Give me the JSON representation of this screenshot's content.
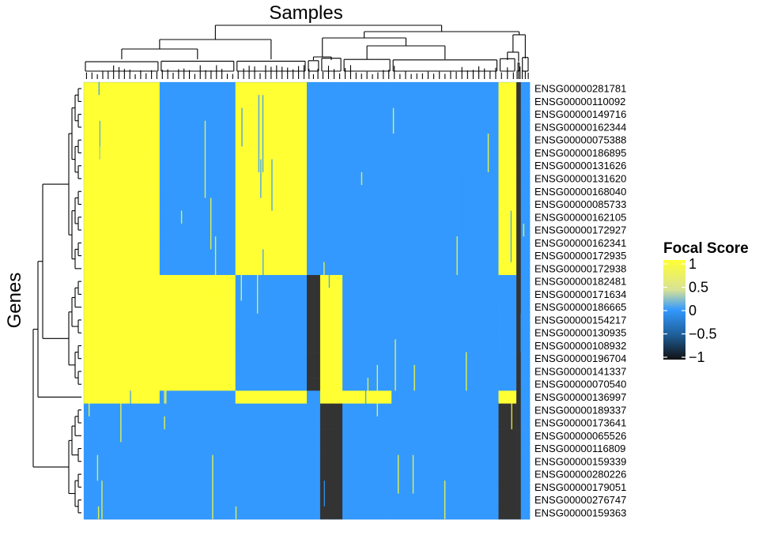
{
  "chart_data": {
    "type": "heatmap",
    "title": "",
    "xlabel": "Samples",
    "ylabel": "Genes",
    "genes": [
      "ENSG00000281781",
      "ENSG00000110092",
      "ENSG00000149716",
      "ENSG00000162344",
      "ENSG00000075388",
      "ENSG00000186895",
      "ENSG00000131626",
      "ENSG00000131620",
      "ENSG00000168040",
      "ENSG00000085733",
      "ENSG00000162105",
      "ENSG00000172927",
      "ENSG00000162341",
      "ENSG00000172935",
      "ENSG00000172938",
      "ENSG00000182481",
      "ENSG00000171634",
      "ENSG00000186665",
      "ENSG00000154217",
      "ENSG00000130935",
      "ENSG00000108932",
      "ENSG00000196704",
      "ENSG00000141337",
      "ENSG00000070540",
      "ENSG00000136997",
      "ENSG00000189337",
      "ENSG00000173641",
      "ENSG00000065526",
      "ENSG00000116809",
      "ENSG00000159339",
      "ENSG00000280226",
      "ENSG00000179051",
      "ENSG00000276747",
      "ENSG00000159363"
    ],
    "gene_clusters": [
      {
        "genes": "ENSG00000281781–ENSG00000172938",
        "pattern": "amplified (1) in sample blocks 1, 3 and 8"
      },
      {
        "genes": "ENSG00000182481–ENSG00000070540",
        "pattern": "amplified (1) in sample blocks 1–2 and 5"
      },
      {
        "genes": "ENSG00000136997",
        "pattern": "mixed amplification across samples"
      },
      {
        "genes": "ENSG00000189337–ENSG00000159363",
        "pattern": "deleted (-1) in sample blocks 5 and 8"
      }
    ],
    "sample_blocks": [
      {
        "block": 1,
        "fraction": 0.17
      },
      {
        "block": 2,
        "fraction": 0.17
      },
      {
        "block": 3,
        "fraction": 0.16
      },
      {
        "block": 4,
        "fraction": 0.03
      },
      {
        "block": 5,
        "fraction": 0.05
      },
      {
        "block": 6,
        "fraction": 0.11
      },
      {
        "block": 7,
        "fraction": 0.24
      },
      {
        "block": 8,
        "fraction": 0.04
      },
      {
        "block": 9,
        "fraction": 0.01
      },
      {
        "block": 10,
        "fraction": 0.02
      }
    ],
    "value_range": [
      -1,
      1
    ],
    "legend": {
      "title": "Focal Score",
      "ticks": [
        "1",
        "0.5",
        "0",
        "−0.5",
        "−1"
      ],
      "tick_values": [
        1,
        0.5,
        0,
        -0.5,
        -1
      ],
      "placement": "right"
    },
    "colors": {
      "high": "#ffff33",
      "mid": "#3399ff",
      "low": "#333333",
      "sample_sep": "#1e78d8"
    }
  }
}
